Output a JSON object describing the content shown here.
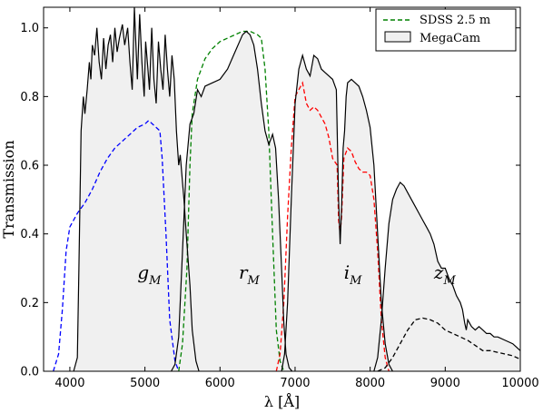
{
  "chart_data": {
    "type": "area",
    "xlabel": "λ [Å]",
    "ylabel": "Transmission",
    "xlim": [
      3650,
      10000
    ],
    "ylim": [
      0,
      1.06
    ],
    "xticks": [
      4000,
      5000,
      6000,
      7000,
      8000,
      9000,
      10000
    ],
    "yticks": [
      0.0,
      0.2,
      0.4,
      0.6,
      0.8,
      1.0
    ],
    "ytick_labels": [
      "0.0",
      "0.2",
      "0.4",
      "0.6",
      "0.8",
      "1.0"
    ],
    "grid": false,
    "legend_position": "top-right",
    "legend": [
      {
        "label": "SDSS 2.5 m",
        "style": "dashed",
        "color": "#008000"
      },
      {
        "label": "MegaCam",
        "style": "filled",
        "color": "#f0f0f0"
      }
    ],
    "band_labels": [
      {
        "main": "g",
        "sub": "M",
        "x": 4900,
        "y": 0.27
      },
      {
        "main": "r",
        "sub": "M",
        "x": 6250,
        "y": 0.27
      },
      {
        "main": "i",
        "sub": "M",
        "x": 7650,
        "y": 0.27
      },
      {
        "main": "z",
        "sub": "M",
        "x": 8850,
        "y": 0.27
      }
    ],
    "megacam": [
      {
        "name": "g_M",
        "points": [
          [
            4050,
            0
          ],
          [
            4100,
            0.04
          ],
          [
            4120,
            0.3
          ],
          [
            4150,
            0.7
          ],
          [
            4180,
            0.8
          ],
          [
            4200,
            0.75
          ],
          [
            4230,
            0.82
          ],
          [
            4260,
            0.9
          ],
          [
            4280,
            0.85
          ],
          [
            4300,
            0.95
          ],
          [
            4330,
            0.92
          ],
          [
            4360,
            1.0
          ],
          [
            4390,
            0.9
          ],
          [
            4420,
            0.85
          ],
          [
            4450,
            0.97
          ],
          [
            4480,
            0.88
          ],
          [
            4510,
            0.95
          ],
          [
            4540,
            0.98
          ],
          [
            4570,
            0.9
          ],
          [
            4600,
            1.0
          ],
          [
            4630,
            0.93
          ],
          [
            4660,
            0.97
          ],
          [
            4700,
            1.01
          ],
          [
            4730,
            0.95
          ],
          [
            4770,
            1.0
          ],
          [
            4800,
            0.9
          ],
          [
            4830,
            0.82
          ],
          [
            4860,
            1.06
          ],
          [
            4880,
            0.95
          ],
          [
            4900,
            0.85
          ],
          [
            4930,
            1.04
          ],
          [
            4960,
            0.9
          ],
          [
            4990,
            0.8
          ],
          [
            5010,
            0.96
          ],
          [
            5040,
            0.88
          ],
          [
            5060,
            0.82
          ],
          [
            5090,
            1.0
          ],
          [
            5120,
            0.85
          ],
          [
            5150,
            0.78
          ],
          [
            5180,
            0.96
          ],
          [
            5210,
            0.88
          ],
          [
            5240,
            0.82
          ],
          [
            5270,
            0.98
          ],
          [
            5300,
            0.88
          ],
          [
            5330,
            0.8
          ],
          [
            5360,
            0.92
          ],
          [
            5390,
            0.85
          ],
          [
            5420,
            0.7
          ],
          [
            5450,
            0.6
          ],
          [
            5470,
            0.63
          ],
          [
            5500,
            0.55
          ],
          [
            5520,
            0.5
          ],
          [
            5550,
            0.4
          ],
          [
            5600,
            0.25
          ],
          [
            5630,
            0.12
          ],
          [
            5680,
            0.03
          ],
          [
            5720,
            0
          ]
        ]
      },
      {
        "name": "r_M",
        "points": [
          [
            5350,
            0
          ],
          [
            5400,
            0.02
          ],
          [
            5450,
            0.1
          ],
          [
            5500,
            0.35
          ],
          [
            5550,
            0.6
          ],
          [
            5600,
            0.72
          ],
          [
            5650,
            0.75
          ],
          [
            5700,
            0.82
          ],
          [
            5750,
            0.8
          ],
          [
            5800,
            0.83
          ],
          [
            5900,
            0.84
          ],
          [
            6000,
            0.85
          ],
          [
            6100,
            0.88
          ],
          [
            6200,
            0.93
          ],
          [
            6300,
            0.98
          ],
          [
            6350,
            0.99
          ],
          [
            6400,
            0.98
          ],
          [
            6450,
            0.95
          ],
          [
            6500,
            0.88
          ],
          [
            6550,
            0.78
          ],
          [
            6600,
            0.7
          ],
          [
            6650,
            0.66
          ],
          [
            6700,
            0.69
          ],
          [
            6740,
            0.65
          ],
          [
            6780,
            0.5
          ],
          [
            6820,
            0.3
          ],
          [
            6850,
            0.14
          ],
          [
            6880,
            0.05
          ],
          [
            6920,
            0.01
          ],
          [
            6960,
            0
          ]
        ]
      },
      {
        "name": "i_M",
        "points": [
          [
            6820,
            0
          ],
          [
            6860,
            0.05
          ],
          [
            6900,
            0.2
          ],
          [
            6950,
            0.5
          ],
          [
            7000,
            0.78
          ],
          [
            7050,
            0.88
          ],
          [
            7100,
            0.92
          ],
          [
            7150,
            0.88
          ],
          [
            7200,
            0.86
          ],
          [
            7250,
            0.92
          ],
          [
            7300,
            0.91
          ],
          [
            7350,
            0.88
          ],
          [
            7400,
            0.87
          ],
          [
            7450,
            0.86
          ],
          [
            7500,
            0.85
          ],
          [
            7550,
            0.82
          ],
          [
            7580,
            0.5
          ],
          [
            7600,
            0.37
          ],
          [
            7620,
            0.48
          ],
          [
            7640,
            0.65
          ],
          [
            7660,
            0.7
          ],
          [
            7680,
            0.8
          ],
          [
            7700,
            0.84
          ],
          [
            7750,
            0.85
          ],
          [
            7800,
            0.84
          ],
          [
            7850,
            0.83
          ],
          [
            7900,
            0.8
          ],
          [
            7950,
            0.76
          ],
          [
            8000,
            0.71
          ],
          [
            8050,
            0.6
          ],
          [
            8100,
            0.4
          ],
          [
            8150,
            0.2
          ],
          [
            8200,
            0.08
          ],
          [
            8250,
            0.02
          ],
          [
            8300,
            0
          ]
        ]
      },
      {
        "name": "z_M",
        "points": [
          [
            8050,
            0
          ],
          [
            8100,
            0.04
          ],
          [
            8150,
            0.15
          ],
          [
            8200,
            0.3
          ],
          [
            8250,
            0.43
          ],
          [
            8300,
            0.5
          ],
          [
            8350,
            0.53
          ],
          [
            8400,
            0.55
          ],
          [
            8450,
            0.54
          ],
          [
            8500,
            0.52
          ],
          [
            8550,
            0.5
          ],
          [
            8600,
            0.48
          ],
          [
            8650,
            0.46
          ],
          [
            8700,
            0.44
          ],
          [
            8750,
            0.42
          ],
          [
            8800,
            0.4
          ],
          [
            8850,
            0.37
          ],
          [
            8900,
            0.32
          ],
          [
            8950,
            0.3
          ],
          [
            9000,
            0.3
          ],
          [
            9050,
            0.27
          ],
          [
            9100,
            0.25
          ],
          [
            9150,
            0.22
          ],
          [
            9200,
            0.2
          ],
          [
            9230,
            0.18
          ],
          [
            9260,
            0.14
          ],
          [
            9280,
            0.12
          ],
          [
            9300,
            0.15
          ],
          [
            9350,
            0.13
          ],
          [
            9400,
            0.12
          ],
          [
            9450,
            0.13
          ],
          [
            9500,
            0.12
          ],
          [
            9550,
            0.11
          ],
          [
            9600,
            0.11
          ],
          [
            9650,
            0.1
          ],
          [
            9700,
            0.1
          ],
          [
            9800,
            0.09
          ],
          [
            9900,
            0.08
          ],
          [
            10000,
            0.06
          ]
        ]
      }
    ],
    "sdss": [
      {
        "name": "u",
        "color": "#0000ff",
        "points": [
          [
            3780,
            0
          ],
          [
            3850,
            0.05
          ],
          [
            3900,
            0.18
          ],
          [
            3950,
            0.35
          ],
          [
            4000,
            0.42
          ],
          [
            4100,
            0.46
          ],
          [
            4200,
            0.49
          ],
          [
            4300,
            0.53
          ],
          [
            4400,
            0.58
          ],
          [
            4500,
            0.62
          ],
          [
            4600,
            0.65
          ],
          [
            4700,
            0.67
          ],
          [
            4800,
            0.69
          ],
          [
            4900,
            0.71
          ],
          [
            5000,
            0.72
          ],
          [
            5050,
            0.73
          ],
          [
            5100,
            0.72
          ],
          [
            5150,
            0.71
          ],
          [
            5200,
            0.7
          ],
          [
            5230,
            0.62
          ],
          [
            5280,
            0.4
          ],
          [
            5330,
            0.15
          ],
          [
            5400,
            0.03
          ],
          [
            5450,
            0
          ]
        ]
      },
      {
        "name": "g",
        "color": "#008000",
        "points": [
          [
            5450,
            0
          ],
          [
            5500,
            0.08
          ],
          [
            5560,
            0.3
          ],
          [
            5600,
            0.6
          ],
          [
            5630,
            0.75
          ],
          [
            5700,
            0.85
          ],
          [
            5800,
            0.91
          ],
          [
            5900,
            0.94
          ],
          [
            6000,
            0.96
          ],
          [
            6100,
            0.97
          ],
          [
            6200,
            0.98
          ],
          [
            6300,
            0.99
          ],
          [
            6400,
            0.99
          ],
          [
            6500,
            0.98
          ],
          [
            6550,
            0.97
          ],
          [
            6600,
            0.88
          ],
          [
            6650,
            0.7
          ],
          [
            6700,
            0.4
          ],
          [
            6750,
            0.12
          ],
          [
            6800,
            0.03
          ],
          [
            6850,
            0
          ]
        ]
      },
      {
        "name": "r",
        "color": "#ff0000",
        "points": [
          [
            6750,
            0
          ],
          [
            6800,
            0.05
          ],
          [
            6850,
            0.2
          ],
          [
            6900,
            0.45
          ],
          [
            6950,
            0.65
          ],
          [
            7000,
            0.8
          ],
          [
            7050,
            0.82
          ],
          [
            7100,
            0.84
          ],
          [
            7150,
            0.78
          ],
          [
            7200,
            0.76
          ],
          [
            7250,
            0.77
          ],
          [
            7300,
            0.76
          ],
          [
            7350,
            0.74
          ],
          [
            7400,
            0.72
          ],
          [
            7450,
            0.68
          ],
          [
            7500,
            0.62
          ],
          [
            7560,
            0.6
          ],
          [
            7580,
            0.44
          ],
          [
            7600,
            0.4
          ],
          [
            7620,
            0.45
          ],
          [
            7650,
            0.62
          ],
          [
            7700,
            0.65
          ],
          [
            7750,
            0.64
          ],
          [
            7800,
            0.61
          ],
          [
            7850,
            0.59
          ],
          [
            7900,
            0.58
          ],
          [
            7950,
            0.58
          ],
          [
            8000,
            0.57
          ],
          [
            8050,
            0.5
          ],
          [
            8100,
            0.35
          ],
          [
            8150,
            0.15
          ],
          [
            8200,
            0.04
          ],
          [
            8250,
            0
          ]
        ]
      },
      {
        "name": "z",
        "color": "#000000",
        "points": [
          [
            8100,
            0
          ],
          [
            8200,
            0.01
          ],
          [
            8300,
            0.04
          ],
          [
            8400,
            0.08
          ],
          [
            8500,
            0.12
          ],
          [
            8600,
            0.15
          ],
          [
            8700,
            0.155
          ],
          [
            8800,
            0.15
          ],
          [
            8900,
            0.14
          ],
          [
            9000,
            0.12
          ],
          [
            9100,
            0.11
          ],
          [
            9200,
            0.1
          ],
          [
            9300,
            0.09
          ],
          [
            9400,
            0.075
          ],
          [
            9500,
            0.06
          ],
          [
            9600,
            0.06
          ],
          [
            9700,
            0.055
          ],
          [
            9800,
            0.05
          ],
          [
            9900,
            0.045
          ],
          [
            10000,
            0.035
          ]
        ]
      }
    ]
  }
}
